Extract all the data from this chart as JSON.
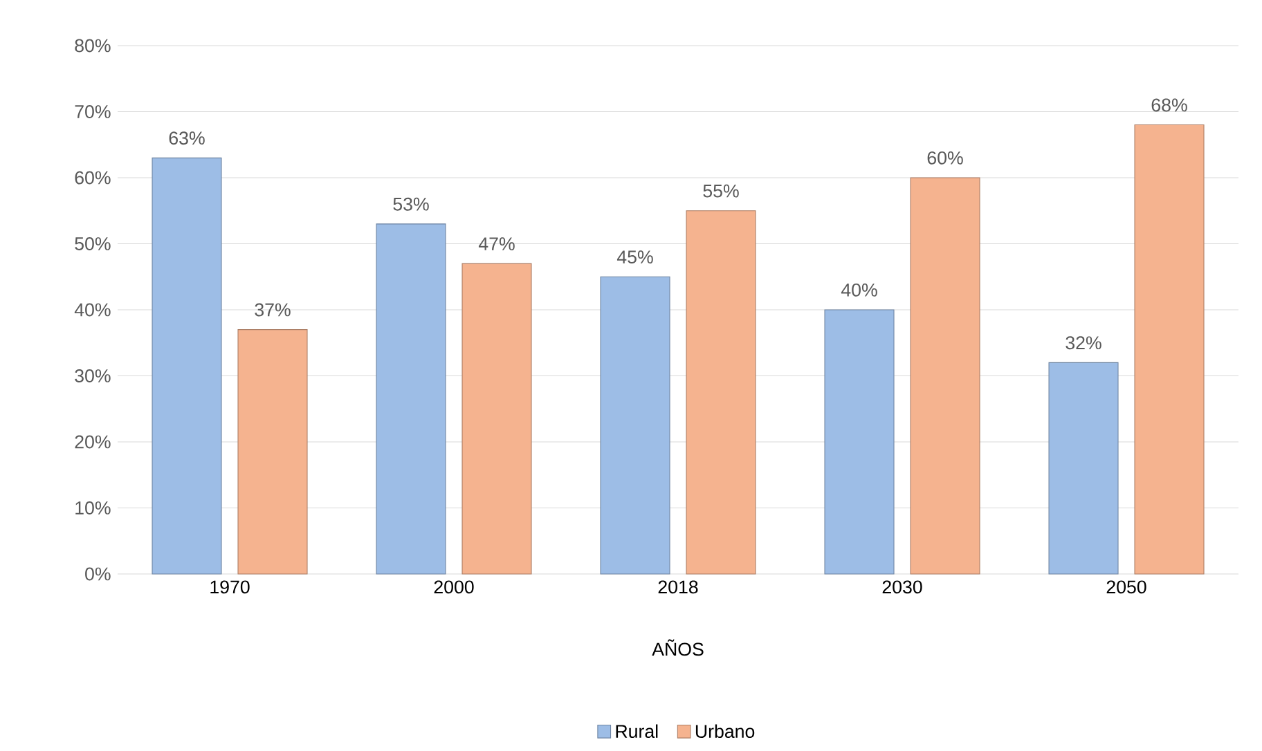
{
  "chart_data": {
    "type": "bar",
    "xlabel": "AÑOS",
    "categories": [
      "1970",
      "2000",
      "2018",
      "2030",
      "2050"
    ],
    "series": [
      {
        "name": "Rural",
        "color": "#9dbde6",
        "values": [
          63,
          53,
          45,
          40,
          32
        ],
        "value_labels": [
          "63%",
          "53%",
          "45%",
          "40%",
          "32%"
        ]
      },
      {
        "name": "Urbano",
        "color": "#f5b38f",
        "values": [
          37,
          47,
          55,
          60,
          68
        ],
        "value_labels": [
          "37%",
          "47%",
          "55%",
          "60%",
          "68%"
        ]
      }
    ],
    "ylim": [
      0,
      80
    ],
    "yticks": [
      {
        "value": 0,
        "label": "0%"
      },
      {
        "value": 10,
        "label": "10%"
      },
      {
        "value": 20,
        "label": "20%"
      },
      {
        "value": 30,
        "label": "30%"
      },
      {
        "value": 40,
        "label": "40%"
      },
      {
        "value": 50,
        "label": "50%"
      },
      {
        "value": 60,
        "label": "60%"
      },
      {
        "value": 70,
        "label": "70%"
      },
      {
        "value": 80,
        "label": "80%"
      }
    ],
    "grid": "y",
    "legend": "bottom"
  }
}
